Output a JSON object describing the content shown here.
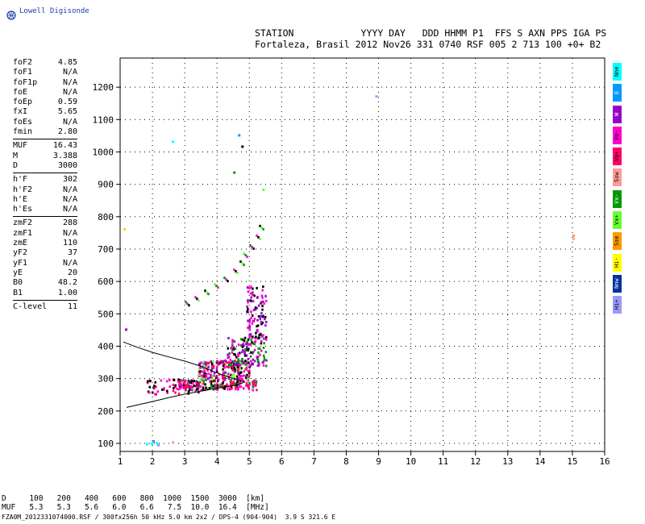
{
  "app": {
    "logo_text": "Lowell Digisonde"
  },
  "header": {
    "labels": "STATION            YYYY DAY   DDD HHMM P1  FFS S AXN PPS IGA PS",
    "values": "Fortaleza, Brasil 2012 Nov26 331 0740 RSF 005 2 713 100 +0+ B2"
  },
  "params": {
    "group1": [
      {
        "name": "foF2",
        "value": "4.85"
      },
      {
        "name": "foF1",
        "value": "N/A"
      },
      {
        "name": "foF1p",
        "value": "N/A"
      },
      {
        "name": "foE",
        "value": "N/A"
      },
      {
        "name": "foEp",
        "value": "0.59"
      },
      {
        "name": "fxI",
        "value": "5.65"
      },
      {
        "name": "foEs",
        "value": "N/A"
      },
      {
        "name": "fmin",
        "value": "2.80"
      }
    ],
    "group2": [
      {
        "name": "MUF",
        "value": "16.43"
      },
      {
        "name": "M",
        "value": "3.388"
      },
      {
        "name": "D",
        "value": "3000"
      }
    ],
    "group3": [
      {
        "name": "h'F",
        "value": "302"
      },
      {
        "name": "h'F2",
        "value": "N/A"
      },
      {
        "name": "h'E",
        "value": "N/A"
      },
      {
        "name": "h'Es",
        "value": "N/A"
      }
    ],
    "group4": [
      {
        "name": "zmF2",
        "value": "288"
      },
      {
        "name": "zmF1",
        "value": "N/A"
      },
      {
        "name": "zmE",
        "value": "110"
      },
      {
        "name": "yF2",
        "value": "37"
      },
      {
        "name": "yF1",
        "value": "N/A"
      },
      {
        "name": "yE",
        "value": "20"
      },
      {
        "name": "B0",
        "value": "48.2"
      },
      {
        "name": "B1",
        "value": "1.00"
      }
    ],
    "group5": [
      {
        "name": "C-level",
        "value": "11"
      }
    ]
  },
  "legend": [
    {
      "label": "Nne",
      "color": "#00ffff"
    },
    {
      "label": "E",
      "color": "#0099ff"
    },
    {
      "label": "W",
      "color": "#9900cc"
    },
    {
      "label": "Vo-",
      "color": "#ff00cc"
    },
    {
      "label": "Vo+",
      "color": "#ff0066"
    },
    {
      "label": "Ssw",
      "color": "#ff9999"
    },
    {
      "label": "Vx-",
      "color": "#009900"
    },
    {
      "label": "Vx+",
      "color": "#66ff33"
    },
    {
      "label": "Sse",
      "color": "#ff9900"
    },
    {
      "label": "Hi-",
      "color": "#ffff00"
    },
    {
      "label": "Nnw",
      "color": "#003399"
    },
    {
      "label": "Hi+",
      "color": "#9999ff"
    }
  ],
  "footer": {
    "d_row": "D     100   200   400   600   800  1000  1500  3000  [km]",
    "muf_row": "MUF   5.3   5.3   5.6   6.0   6.6   7.5  10.0  16.4  [MHz]",
    "info_line": "FZA0M_2012331074000.RSF / 300fx256h 50 kHz 5.0 km 2x2 / DPS-4 (904-904)  3.9 S 321.6 E"
  },
  "chart_data": {
    "type": "scatter",
    "title": "",
    "xlabel": "",
    "ylabel": "",
    "xlim": [
      1,
      16
    ],
    "ylim": [
      75,
      1290
    ],
    "x_ticks": [
      1,
      2,
      3,
      4,
      5,
      6,
      7,
      8,
      9,
      10,
      11,
      12,
      13,
      14,
      15,
      16
    ],
    "y_ticks": [
      100,
      200,
      300,
      400,
      500,
      600,
      700,
      800,
      900,
      1000,
      1100,
      1200
    ],
    "grid": true,
    "profile_curve": [
      [
        1.1,
        413
      ],
      [
        1.5,
        398
      ],
      [
        2.0,
        381
      ],
      [
        2.5,
        367
      ],
      [
        3.0,
        354
      ],
      [
        3.5,
        338
      ],
      [
        3.9,
        322
      ],
      [
        4.2,
        310
      ],
      [
        4.5,
        301
      ],
      [
        4.85,
        290
      ],
      [
        4.7,
        282
      ],
      [
        4.3,
        275
      ],
      [
        3.9,
        269
      ],
      [
        3.5,
        261
      ],
      [
        3.0,
        252
      ],
      [
        2.5,
        241
      ],
      [
        2.0,
        229
      ],
      [
        1.5,
        218
      ],
      [
        1.2,
        211
      ]
    ],
    "echo_clusters": [
      {
        "xr": [
          2.8,
          5.2
        ],
        "yr": [
          268,
          300
        ],
        "n": 180,
        "colors": [
          "#ff0066",
          "#ff00cc",
          "#000000",
          "#009900"
        ]
      },
      {
        "xr": [
          3.4,
          5.0
        ],
        "yr": [
          300,
          360
        ],
        "n": 220,
        "colors": [
          "#ff00cc",
          "#9900cc",
          "#ff0066",
          "#000000",
          "#66ff33"
        ]
      },
      {
        "xr": [
          4.3,
          5.5
        ],
        "yr": [
          340,
          430
        ],
        "n": 140,
        "colors": [
          "#000000",
          "#9900cc",
          "#ff00cc",
          "#009900"
        ]
      },
      {
        "xr": [
          4.9,
          5.5
        ],
        "yr": [
          430,
          590
        ],
        "n": 90,
        "colors": [
          "#000000",
          "#9900cc",
          "#ff00cc"
        ]
      },
      {
        "xr": [
          1.8,
          3.4
        ],
        "yr": [
          255,
          300
        ],
        "n": 60,
        "colors": [
          "#ff0066",
          "#000000",
          "#ff00cc"
        ]
      }
    ],
    "echo_arc": [
      [
        3.0,
        540
      ],
      [
        3.3,
        555
      ],
      [
        3.6,
        575
      ],
      [
        3.9,
        595
      ],
      [
        4.2,
        615
      ],
      [
        4.5,
        640
      ],
      [
        4.7,
        665
      ],
      [
        4.8,
        690
      ],
      [
        5.0,
        715
      ],
      [
        5.2,
        745
      ],
      [
        5.3,
        775
      ]
    ],
    "scattered_points": [
      {
        "x": 1.1,
        "y": 765,
        "c": "#ffcc00"
      },
      {
        "x": 1.15,
        "y": 455,
        "c": "#9900cc"
      },
      {
        "x": 2.6,
        "y": 1035,
        "c": "#00ffff"
      },
      {
        "x": 4.65,
        "y": 1055,
        "c": "#0099ff"
      },
      {
        "x": 4.75,
        "y": 1020,
        "c": "#000000"
      },
      {
        "x": 4.5,
        "y": 940,
        "c": "#009900"
      },
      {
        "x": 5.4,
        "y": 887,
        "c": "#66ff33"
      },
      {
        "x": 8.9,
        "y": 1175,
        "c": "#9999ff"
      },
      {
        "x": 15.0,
        "y": 745,
        "c": "#ff9900"
      },
      {
        "x": 15.0,
        "y": 735,
        "c": "#ff99cc"
      },
      {
        "x": 1.95,
        "y": 103,
        "c": "#00ffff"
      },
      {
        "x": 2.0,
        "y": 110,
        "c": "#0099ff"
      },
      {
        "x": 2.1,
        "y": 104,
        "c": "#00ffff"
      },
      {
        "x": 2.15,
        "y": 98,
        "c": "#9999ff"
      },
      {
        "x": 2.6,
        "y": 107,
        "c": "#ff9999"
      },
      {
        "x": 1.8,
        "y": 101,
        "c": "#00ffff"
      }
    ]
  }
}
